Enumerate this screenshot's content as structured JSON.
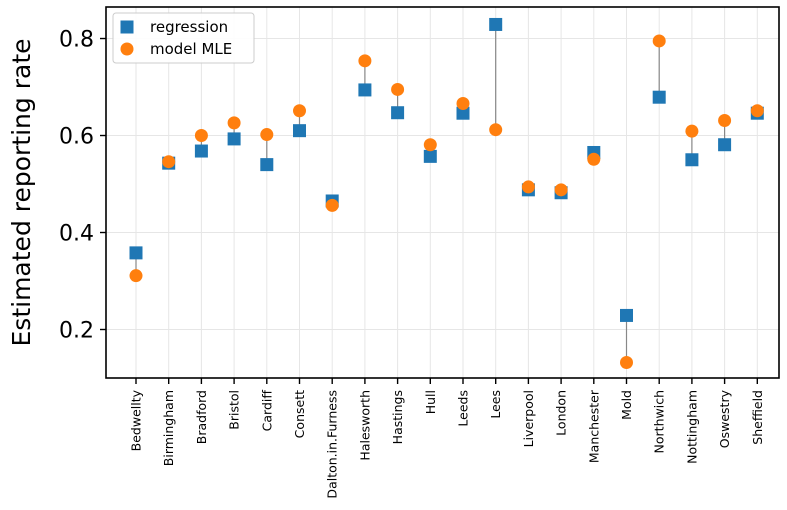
{
  "chart_data": {
    "type": "scatter",
    "title": "",
    "xlabel": "",
    "ylabel": "Estimated reporting rate",
    "ylim": [
      0.1,
      0.865
    ],
    "yticks": [
      0.2,
      0.4,
      0.6,
      0.8
    ],
    "ytick_labels": [
      "0.2",
      "0.4",
      "0.6",
      "0.8"
    ],
    "grid": true,
    "legend_position": "top-left",
    "categories": [
      "Bedwellty",
      "Birmingham",
      "Bradford",
      "Bristol",
      "Cardiff",
      "Consett",
      "Dalton.in.Furness",
      "Halesworth",
      "Hastings",
      "Hull",
      "Leeds",
      "Lees",
      "Liverpool",
      "London",
      "Manchester",
      "Mold",
      "Northwich",
      "Nottingham",
      "Oswestry",
      "Sheffield"
    ],
    "series": [
      {
        "name": "regression",
        "marker": "square",
        "color": "#1f77b4",
        "values": [
          0.358,
          0.543,
          0.568,
          0.593,
          0.54,
          0.61,
          0.465,
          0.694,
          0.647,
          0.557,
          0.646,
          0.829,
          0.488,
          0.482,
          0.565,
          0.229,
          0.679,
          0.55,
          0.581,
          0.646
        ]
      },
      {
        "name": "model MLE",
        "marker": "circle",
        "color": "#ff7f0e",
        "values": [
          0.311,
          0.546,
          0.6,
          0.626,
          0.602,
          0.651,
          0.456,
          0.754,
          0.695,
          0.581,
          0.666,
          0.612,
          0.494,
          0.488,
          0.551,
          0.132,
          0.795,
          0.609,
          0.631,
          0.651
        ]
      }
    ],
    "connector_color": "#888888"
  }
}
